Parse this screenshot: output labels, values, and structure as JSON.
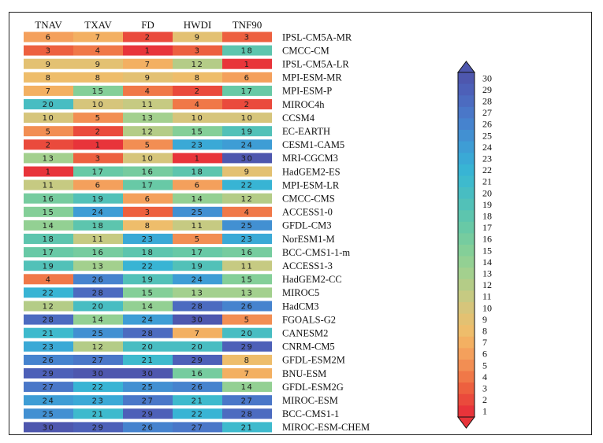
{
  "chart_data": {
    "type": "heatmap",
    "title": "",
    "columns": [
      "TNAV",
      "TXAV",
      "FD",
      "HWDI",
      "TNF90"
    ],
    "rows": [
      {
        "model": "IPSL-CM5A-MR",
        "values": [
          6,
          7,
          2,
          9,
          3
        ]
      },
      {
        "model": "CMCC-CM",
        "values": [
          3,
          4,
          1,
          3,
          18
        ]
      },
      {
        "model": "IPSL-CM5A-LR",
        "values": [
          9,
          9,
          7,
          12,
          1
        ]
      },
      {
        "model": "MPI-ESM-MR",
        "values": [
          8,
          8,
          9,
          8,
          6
        ]
      },
      {
        "model": "MPI-ESM-P",
        "values": [
          7,
          15,
          4,
          2,
          17
        ]
      },
      {
        "model": "MIROC4h",
        "values": [
          20,
          10,
          11,
          4,
          2
        ]
      },
      {
        "model": "CCSM4",
        "values": [
          10,
          5,
          13,
          10,
          10
        ]
      },
      {
        "model": "EC-EARTH",
        "values": [
          5,
          2,
          12,
          15,
          19
        ]
      },
      {
        "model": "CESM1-CAM5",
        "values": [
          2,
          1,
          5,
          23,
          24
        ]
      },
      {
        "model": "MRI-CGCM3",
        "values": [
          13,
          3,
          10,
          1,
          30
        ]
      },
      {
        "model": "HadGEM2-ES",
        "values": [
          1,
          17,
          16,
          18,
          9
        ]
      },
      {
        "model": "MPI-ESM-LR",
        "values": [
          11,
          6,
          17,
          6,
          22
        ]
      },
      {
        "model": "CMCC-CMS",
        "values": [
          16,
          19,
          6,
          14,
          12
        ]
      },
      {
        "model": "ACCESS1-0",
        "values": [
          15,
          24,
          3,
          25,
          4
        ]
      },
      {
        "model": "GFDL-CM3",
        "values": [
          14,
          18,
          8,
          11,
          25
        ]
      },
      {
        "model": "NorESM1-M",
        "values": [
          18,
          11,
          23,
          5,
          23
        ]
      },
      {
        "model": "BCC-CMS1-1-m",
        "values": [
          17,
          16,
          18,
          17,
          16
        ]
      },
      {
        "model": "ACCESS1-3",
        "values": [
          19,
          13,
          22,
          19,
          11
        ]
      },
      {
        "model": "HadGEM2-CC",
        "values": [
          4,
          26,
          19,
          24,
          15
        ]
      },
      {
        "model": "MIROC5",
        "values": [
          22,
          28,
          15,
          13,
          13
        ]
      },
      {
        "model": "HadCM3",
        "values": [
          12,
          20,
          14,
          28,
          26
        ]
      },
      {
        "model": "FGOALS-G2",
        "values": [
          28,
          14,
          24,
          30,
          5
        ]
      },
      {
        "model": "CANESM2",
        "values": [
          21,
          25,
          28,
          7,
          20
        ]
      },
      {
        "model": "CNRM-CM5",
        "values": [
          23,
          12,
          20,
          20,
          29
        ]
      },
      {
        "model": "GFDL-ESM2M",
        "values": [
          26,
          27,
          21,
          29,
          8
        ]
      },
      {
        "model": "BNU-ESM",
        "values": [
          29,
          30,
          30,
          16,
          7
        ]
      },
      {
        "model": "GFDL-ESM2G",
        "values": [
          27,
          22,
          25,
          26,
          14
        ]
      },
      {
        "model": "MIROC-ESM",
        "values": [
          24,
          23,
          27,
          21,
          27
        ]
      },
      {
        "model": "BCC-CMS1-1",
        "values": [
          25,
          21,
          29,
          22,
          28
        ]
      },
      {
        "model": "MIROC-ESM-CHEM",
        "values": [
          30,
          29,
          26,
          27,
          21
        ]
      }
    ],
    "colorbar": {
      "min": 1,
      "max": 30,
      "ticks": [
        1,
        2,
        3,
        4,
        5,
        6,
        7,
        8,
        9,
        10,
        11,
        12,
        13,
        14,
        15,
        16,
        17,
        18,
        19,
        20,
        21,
        22,
        23,
        24,
        25,
        26,
        27,
        28,
        29,
        30
      ],
      "colors": [
        "#e8343a",
        "#ea4a3c",
        "#ed603f",
        "#f07848",
        "#f28e53",
        "#f4a05c",
        "#f3b062",
        "#eebd6b",
        "#e3c172",
        "#d6c57b",
        "#c6ca82",
        "#b4cc87",
        "#a3d08e",
        "#93d093",
        "#84cf98",
        "#76cc9f",
        "#68c9a6",
        "#5dc5ae",
        "#52c1b8",
        "#48bdc2",
        "#3ebacd",
        "#38b4d4",
        "#3aa9d6",
        "#3e9dd5",
        "#4290d2",
        "#4683ce",
        "#4a77c8",
        "#4c6bc0",
        "#4d60b8",
        "#4e57ae"
      ]
    }
  }
}
